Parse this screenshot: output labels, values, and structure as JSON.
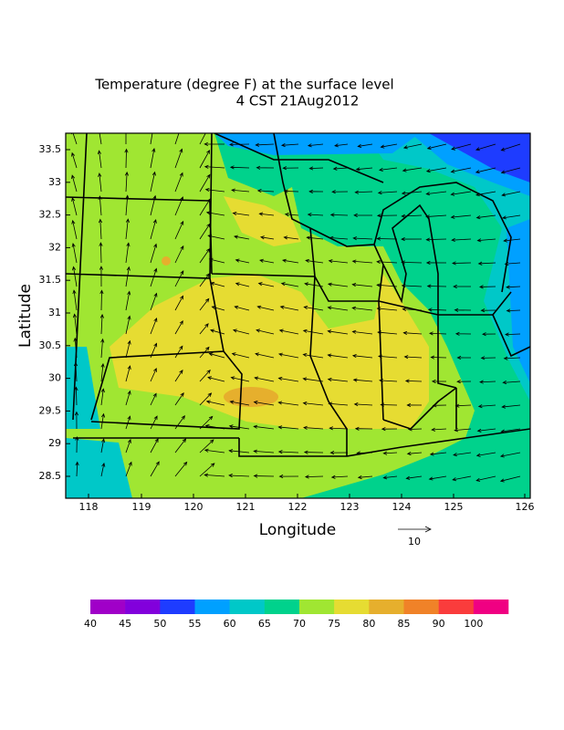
{
  "title": [
    "Temperature (degree F) at the surface level",
    "4 CST 21Aug2012"
  ],
  "x_axis": {
    "label": "Longitude",
    "ticks": [
      "118",
      "119",
      "120",
      "121",
      "122",
      "123",
      "124",
      "125",
      "126"
    ]
  },
  "y_axis": {
    "label": "Latitude",
    "ticks": [
      "33.5",
      "33",
      "32.5",
      "32",
      "31.5",
      "31",
      "30.5",
      "30",
      "29.5",
      "29",
      "28.5"
    ]
  },
  "vector_key": "10",
  "colorbar": {
    "colors": [
      "#a000c8",
      "#8200dc",
      "#1e3cff",
      "#00a0ff",
      "#00c8c8",
      "#00d28c",
      "#a0e632",
      "#e6dc32",
      "#e6af2d",
      "#f08228",
      "#fa3c3c",
      "#f00082"
    ],
    "labels": [
      "40",
      "45",
      "50",
      "55",
      "60",
      "65",
      "70",
      "75",
      "80",
      "85",
      "90",
      "100"
    ]
  }
}
